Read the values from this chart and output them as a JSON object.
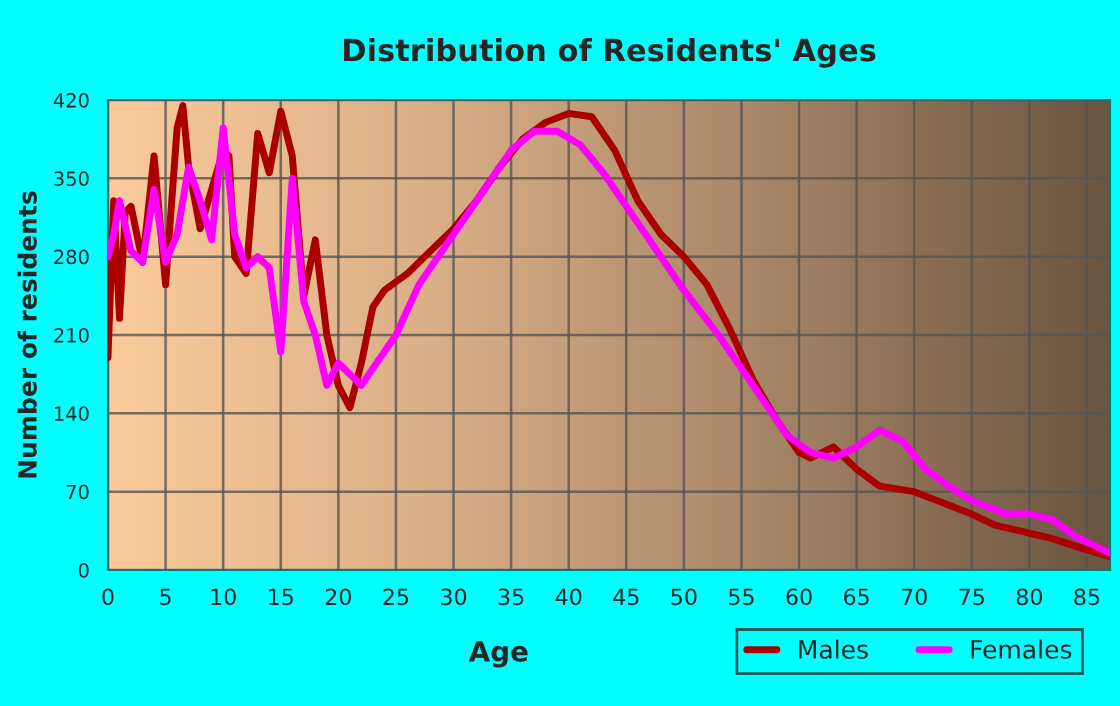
{
  "chart_data": {
    "type": "line",
    "title": "Distribution of Residents' Ages",
    "xlabel": "Age",
    "ylabel": "Number of residents",
    "xlim": [
      0,
      87
    ],
    "xticks": [
      0,
      5,
      10,
      15,
      20,
      25,
      30,
      35,
      40,
      45,
      50,
      55,
      60,
      65,
      70,
      75,
      80,
      85
    ],
    "ylim": [
      0,
      420
    ],
    "yticks": [
      0,
      70,
      140,
      210,
      280,
      350,
      420
    ],
    "grid": true,
    "legend": "bottom right",
    "series": [
      {
        "name": "Males",
        "color": "#aa0000",
        "x": [
          0,
          0.5,
          1,
          1.5,
          2,
          3,
          4,
          5,
          6,
          6.5,
          7,
          8,
          9,
          10,
          10.5,
          11,
          12,
          13,
          14,
          15,
          16,
          17,
          18,
          19,
          20,
          21,
          22,
          23,
          24,
          26,
          28,
          30,
          32,
          34,
          36,
          38,
          40,
          42,
          44,
          46,
          48,
          50,
          52,
          54,
          56,
          58,
          60,
          61,
          63,
          65,
          67,
          70,
          72,
          75,
          77,
          80,
          82,
          85,
          87
        ],
        "values": [
          190,
          330,
          225,
          320,
          325,
          275,
          370,
          255,
          395,
          415,
          360,
          305,
          340,
          375,
          370,
          280,
          265,
          390,
          355,
          410,
          370,
          245,
          295,
          210,
          165,
          145,
          185,
          235,
          250,
          265,
          285,
          305,
          330,
          360,
          385,
          400,
          408,
          405,
          375,
          330,
          300,
          280,
          255,
          215,
          170,
          135,
          105,
          100,
          110,
          90,
          75,
          70,
          62,
          50,
          40,
          33,
          28,
          18,
          12
        ]
      },
      {
        "name": "Females",
        "color": "#ff00ff",
        "x": [
          0,
          0.5,
          1,
          2,
          3,
          4,
          5,
          6,
          7,
          8,
          9,
          10,
          11,
          12,
          13,
          14,
          15,
          16,
          17,
          18,
          19,
          20,
          21,
          22,
          23,
          25,
          27,
          30,
          33,
          35,
          37,
          39,
          41,
          43,
          45,
          48,
          50,
          53,
          55,
          57,
          59,
          61,
          63,
          65,
          67,
          69,
          71,
          73,
          75,
          78,
          80,
          82,
          84,
          87
        ],
        "values": [
          280,
          300,
          330,
          285,
          275,
          340,
          275,
          300,
          360,
          330,
          295,
          395,
          300,
          270,
          280,
          270,
          195,
          350,
          240,
          210,
          165,
          185,
          175,
          165,
          180,
          210,
          255,
          300,
          345,
          375,
          392,
          392,
          380,
          355,
          325,
          280,
          250,
          210,
          180,
          150,
          120,
          105,
          100,
          110,
          125,
          115,
          90,
          75,
          62,
          50,
          50,
          45,
          30,
          15
        ]
      }
    ]
  }
}
